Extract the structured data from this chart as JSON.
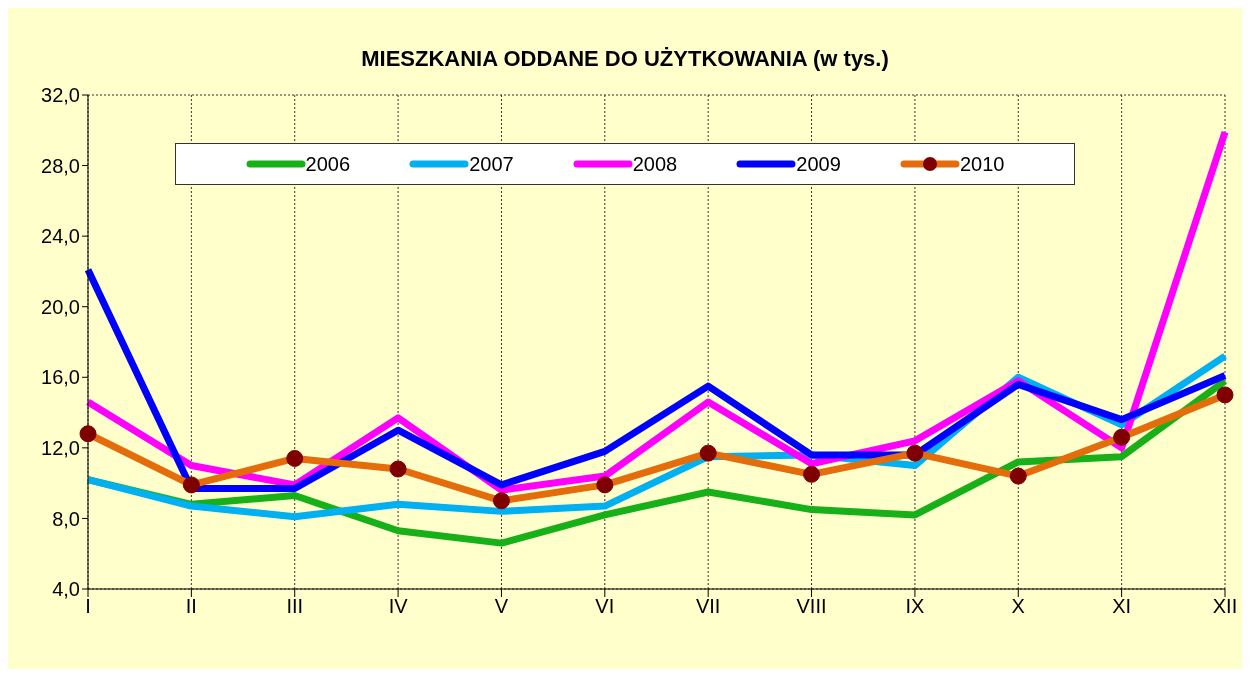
{
  "chart_data": {
    "type": "line",
    "title": "MIESZKANIA ODDANE DO UŻYTKOWANIA (w tys.)",
    "categories": [
      "I",
      "II",
      "III",
      "IV",
      "V",
      "VI",
      "VII",
      "VIII",
      "IX",
      "X",
      "XI",
      "XII"
    ],
    "series": [
      {
        "name": "2006",
        "color": "#18b018",
        "values": [
          10.2,
          8.8,
          9.3,
          7.3,
          6.6,
          8.2,
          9.5,
          8.5,
          8.2,
          11.2,
          11.5,
          15.8
        ]
      },
      {
        "name": "2007",
        "color": "#00b0f0",
        "values": [
          10.2,
          8.7,
          8.1,
          8.8,
          8.4,
          8.7,
          11.5,
          11.6,
          11.0,
          16.0,
          13.3,
          17.2
        ]
      },
      {
        "name": "2008",
        "color": "#ff00ff",
        "values": [
          14.6,
          11.0,
          9.9,
          13.7,
          9.6,
          10.4,
          14.6,
          11.1,
          12.4,
          15.8,
          12.0,
          29.9
        ]
      },
      {
        "name": "2009",
        "color": "#0000ff",
        "values": [
          22.1,
          9.7,
          9.7,
          13.0,
          9.9,
          11.8,
          15.5,
          11.6,
          11.6,
          15.6,
          13.6,
          16.1
        ]
      },
      {
        "name": "2010",
        "color": "#e46c0a",
        "marker": "circle",
        "values": [
          12.8,
          9.9,
          11.4,
          10.8,
          9.0,
          9.9,
          11.7,
          10.5,
          11.7,
          10.4,
          12.6,
          15.0
        ]
      }
    ],
    "ylim": [
      4,
      32
    ],
    "yticks": [
      {
        "value": 4,
        "label": "4,0"
      },
      {
        "value": 8,
        "label": "8,0"
      },
      {
        "value": 12,
        "label": "12,0"
      },
      {
        "value": 16,
        "label": "16,0"
      },
      {
        "value": 20,
        "label": "20,0"
      },
      {
        "value": 24,
        "label": "24,0"
      },
      {
        "value": 28,
        "label": "28,0"
      },
      {
        "value": 32,
        "label": "32,0"
      }
    ],
    "grid": true,
    "legend": "top",
    "line_style": "solid",
    "marker": "none"
  }
}
